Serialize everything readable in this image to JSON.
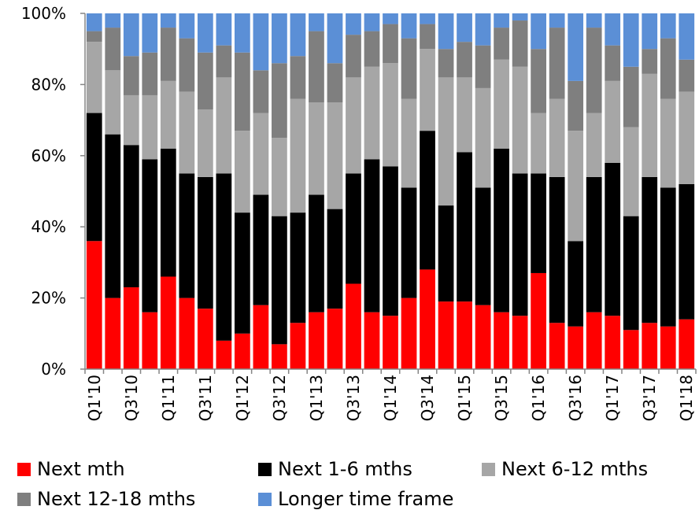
{
  "chart_data": {
    "type": "bar",
    "stacked": true,
    "ylim": [
      0,
      100
    ],
    "yticks": [
      "0%",
      "20%",
      "40%",
      "60%",
      "80%",
      "100%"
    ],
    "xtick_labels": [
      "Q1'10",
      "Q3'10",
      "Q1'11",
      "Q3'11",
      "Q1'12",
      "Q3'12",
      "Q1'13",
      "Q3'13",
      "Q1'14",
      "Q3'14",
      "Q1'15",
      "Q3'15",
      "Q1'16",
      "Q3'16",
      "Q1'17",
      "Q3'17",
      "Q1'18"
    ],
    "categories": [
      "Q1'10",
      "Q2'10",
      "Q3'10",
      "Q4'10",
      "Q1'11",
      "Q2'11",
      "Q3'11",
      "Q4'11",
      "Q1'12",
      "Q2'12",
      "Q3'12",
      "Q4'12",
      "Q1'13",
      "Q2'13",
      "Q3'13",
      "Q4'13",
      "Q1'14",
      "Q2'14",
      "Q3'14",
      "Q4'14",
      "Q1'15",
      "Q2'15",
      "Q3'15",
      "Q4'15",
      "Q1'16",
      "Q2'16",
      "Q3'16",
      "Q4'16",
      "Q1'17",
      "Q2'17",
      "Q3'17",
      "Q4'17",
      "Q1'18"
    ],
    "series": [
      {
        "name": "Next mth",
        "color": "#ff0000",
        "values": [
          36,
          20,
          23,
          16,
          26,
          20,
          17,
          8,
          10,
          18,
          7,
          13,
          16,
          17,
          24,
          16,
          15,
          20,
          28,
          19,
          19,
          18,
          16,
          15,
          27,
          13,
          12,
          16,
          15,
          11,
          13,
          12,
          14
        ]
      },
      {
        "name": "Next 1-6 mths",
        "color": "#000000",
        "values": [
          36,
          46,
          40,
          43,
          36,
          35,
          37,
          47,
          34,
          31,
          36,
          31,
          33,
          28,
          31,
          43,
          42,
          31,
          39,
          27,
          42,
          33,
          46,
          40,
          28,
          41,
          24,
          38,
          43,
          32,
          41,
          39,
          38
        ]
      },
      {
        "name": "Next 6-12 mths",
        "color": "#a6a6a6",
        "values": [
          20,
          18,
          14,
          18,
          19,
          23,
          19,
          27,
          23,
          23,
          22,
          32,
          26,
          30,
          27,
          26,
          29,
          25,
          23,
          36,
          21,
          28,
          25,
          30,
          17,
          22,
          31,
          18,
          23,
          25,
          29,
          25,
          26
        ]
      },
      {
        "name": "Next 12-18 mths",
        "color": "#7f7f7f",
        "values": [
          3,
          12,
          11,
          12,
          15,
          15,
          16,
          9,
          22,
          12,
          21,
          12,
          20,
          11,
          12,
          10,
          11,
          17,
          7,
          8,
          10,
          12,
          9,
          13,
          18,
          20,
          14,
          24,
          10,
          17,
          7,
          17,
          9
        ]
      },
      {
        "name": "Longer time frame",
        "color": "#5b8fd6",
        "values": [
          5,
          4,
          12,
          11,
          4,
          7,
          11,
          9,
          11,
          16,
          14,
          12,
          5,
          14,
          6,
          5,
          3,
          7,
          3,
          10,
          8,
          9,
          4,
          2,
          10,
          4,
          19,
          4,
          9,
          15,
          10,
          7,
          13
        ]
      }
    ]
  }
}
